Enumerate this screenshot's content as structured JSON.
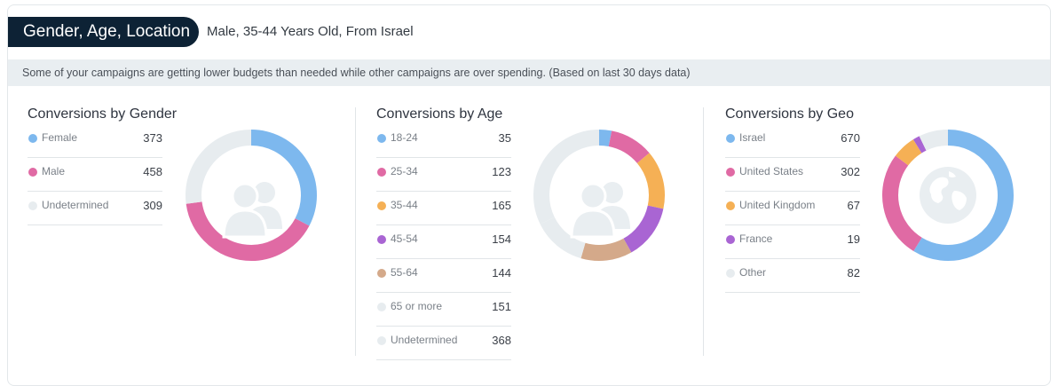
{
  "header": {
    "title": "Gender, Age, Location",
    "subtitle": "Male, 35-44 Years Old, From Israel"
  },
  "alert": {
    "text": "Some of your campaigns are getting lower budgets than needed while other campaigns are over spending. (Based on last 30 days data)"
  },
  "colors": {
    "blue": "#7db8ee",
    "pink": "#e06aa4",
    "orange": "#f5b055",
    "purple": "#a965d3",
    "tan": "#d4a98a",
    "gray": "#e7ecef",
    "header_bg": "#0d2235"
  },
  "chart_data": [
    {
      "type": "pie",
      "title": "Conversions by Gender",
      "icon": "users-icon",
      "categories": [
        "Female",
        "Male",
        "Undetermined"
      ],
      "values": [
        373,
        458,
        309
      ],
      "colors": [
        "#7db8ee",
        "#e06aa4",
        "#e7ecef"
      ]
    },
    {
      "type": "pie",
      "title": "Conversions by Age",
      "icon": "users-icon",
      "categories": [
        "18-24",
        "25-34",
        "35-44",
        "45-54",
        "55-64",
        "65 or more",
        "Undetermined"
      ],
      "values": [
        35,
        123,
        165,
        154,
        144,
        151,
        368
      ],
      "colors": [
        "#7db8ee",
        "#e06aa4",
        "#f5b055",
        "#a965d3",
        "#d4a98a",
        "#e7ecef",
        "#e7ecef"
      ]
    },
    {
      "type": "pie",
      "title": "Conversions by Geo",
      "icon": "globe-icon",
      "categories": [
        "Israel",
        "United States",
        "United Kingdom",
        "France",
        "Other"
      ],
      "values": [
        670,
        302,
        67,
        19,
        82
      ],
      "colors": [
        "#7db8ee",
        "#e06aa4",
        "#f5b055",
        "#a965d3",
        "#e7ecef"
      ]
    }
  ]
}
